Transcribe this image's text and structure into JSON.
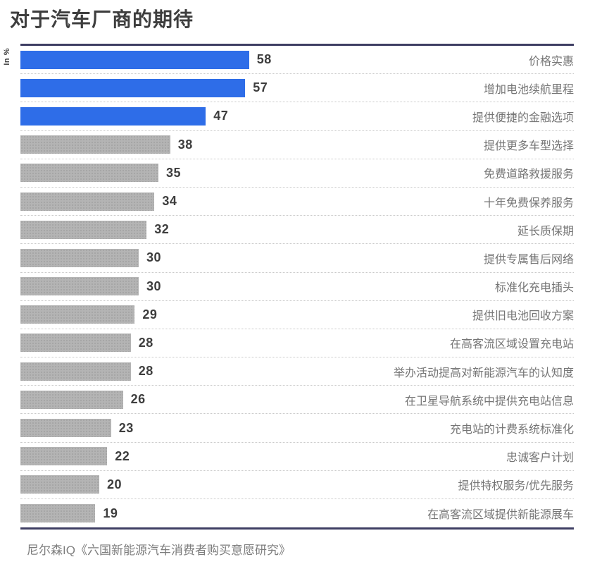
{
  "title": "对于汽车厂商的期待",
  "axis_unit": "In %",
  "source": "尼尔森IQ《六国新能源汽车消费者购买意愿研究》",
  "colors": {
    "bar_highlight": "#2e6de8",
    "bar_default": "#b4b4b4",
    "bar_default_dot": "#a2a2a2",
    "rule_line": "#3e3e63",
    "title_text": "#3e3e3e",
    "value_text": "#3d3d3d",
    "category_text": "#757575",
    "source_text": "#7d7d7d"
  },
  "chart_data": {
    "type": "bar",
    "orientation": "horizontal",
    "title": "对于汽车厂商的期待",
    "value_unit": "In %",
    "highlight_count": 3,
    "categories": [
      "价格实惠",
      "增加电池续航里程",
      "提供便捷的金融选项",
      "提供更多车型选择",
      "免费道路救援服务",
      "十年免费保养服务",
      "延长质保期",
      "提供专属售后网络",
      "标准化充电插头",
      "提供旧电池回收方案",
      "在高客流区域设置充电站",
      "举办活动提高对新能源汽车的认知度",
      "在卫星导航系统中提供充电站信息",
      "充电站的计费系统标准化",
      "忠诚客户计划",
      "提供特权服务/优先服务",
      "在高客流区域提供新能源展车"
    ],
    "values": [
      58,
      57,
      47,
      38,
      35,
      34,
      32,
      30,
      30,
      29,
      28,
      28,
      26,
      23,
      22,
      20,
      19
    ],
    "xlim": [
      0,
      140
    ],
    "grid": false,
    "legend": false
  }
}
